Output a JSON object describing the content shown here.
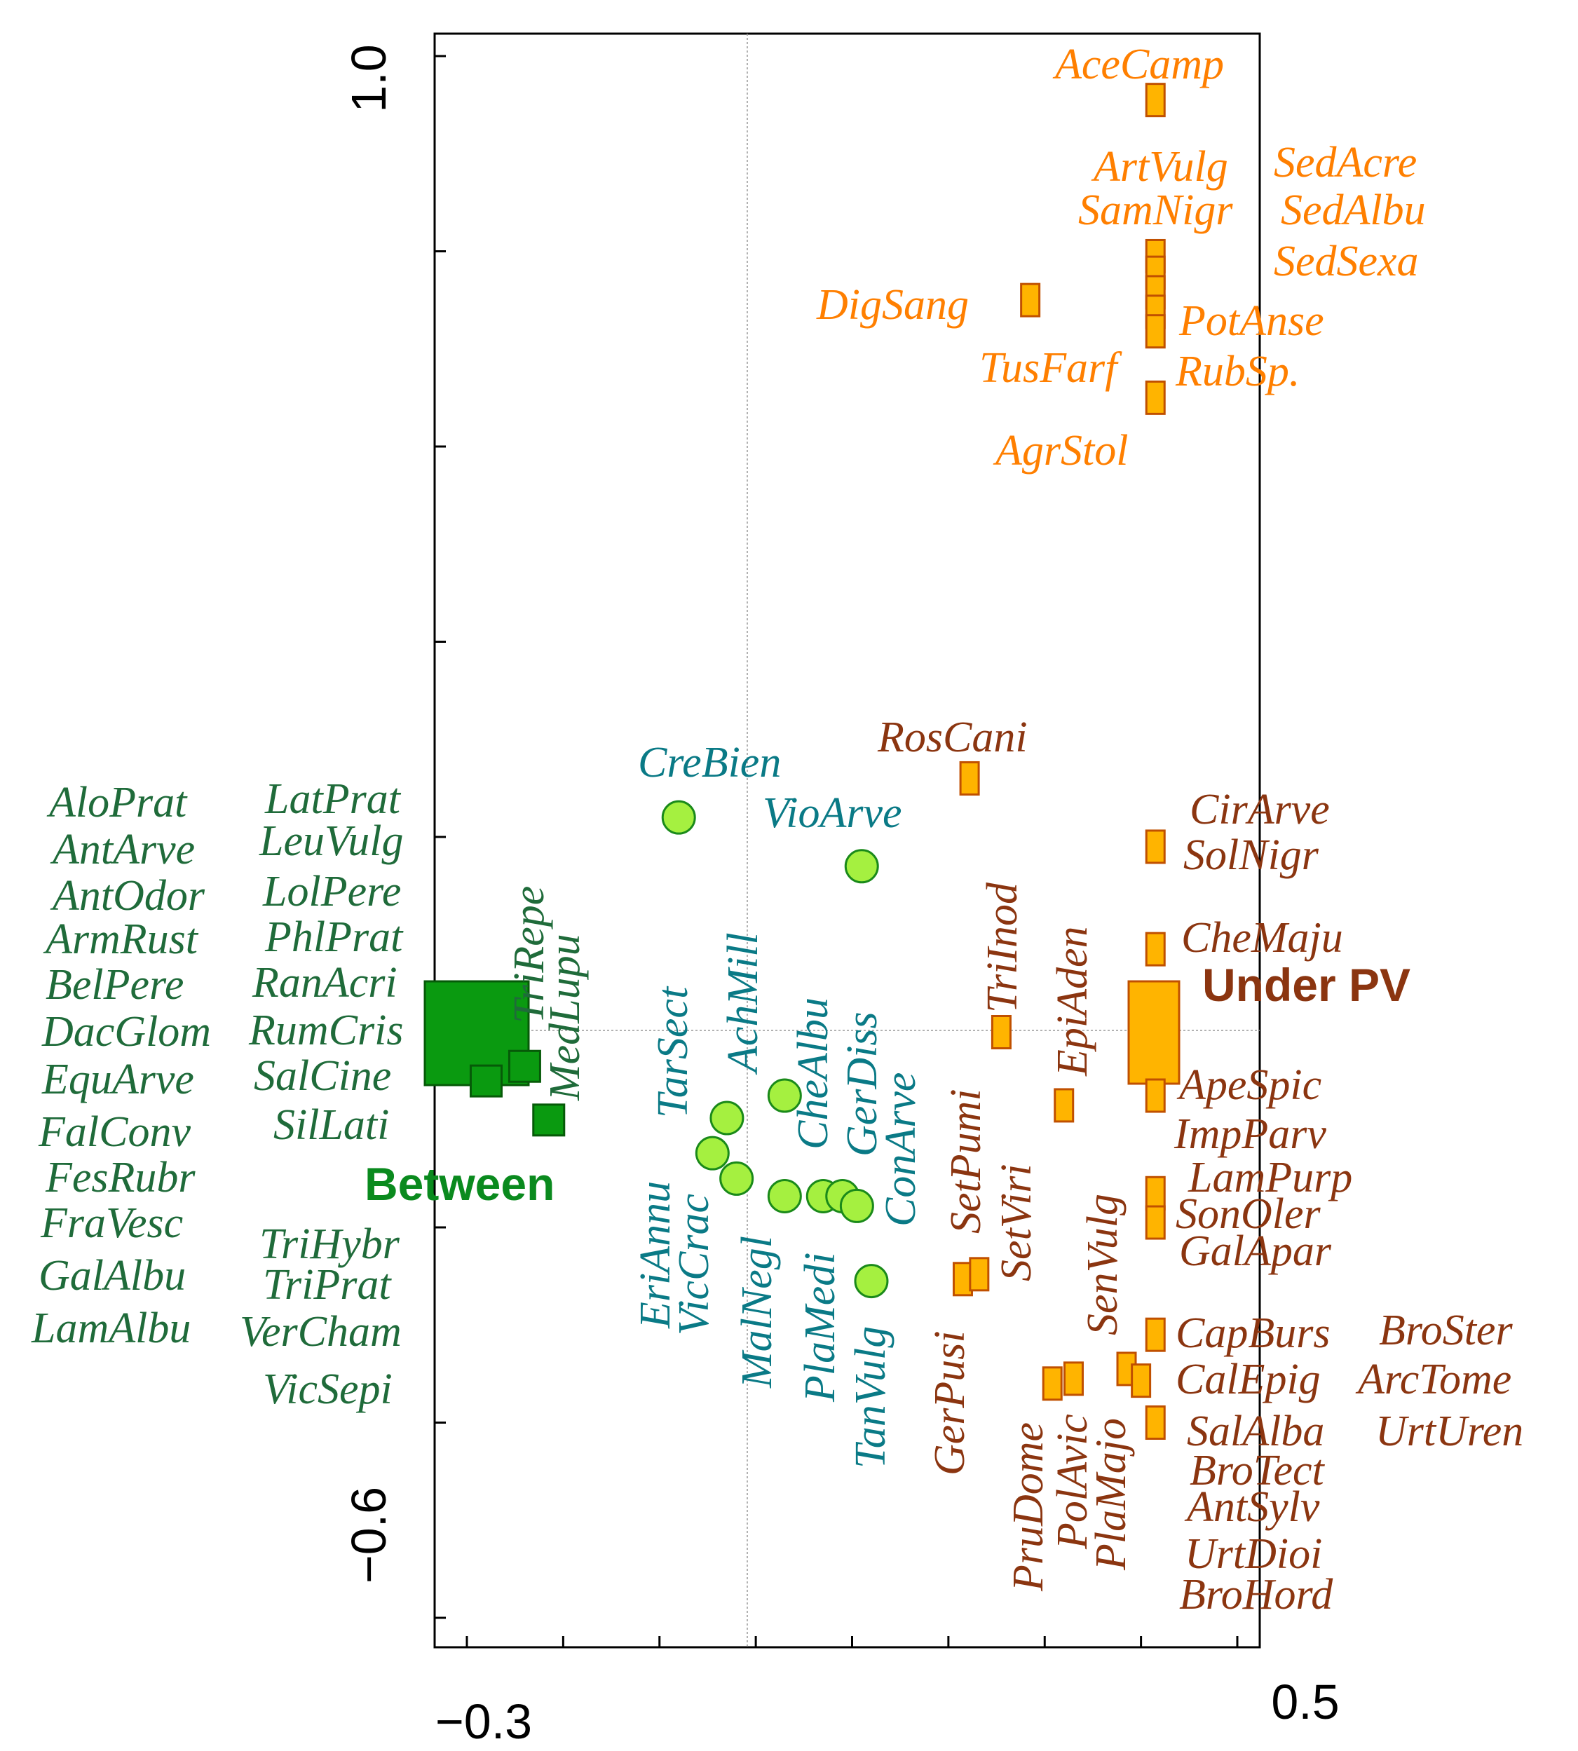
{
  "colors": {
    "dark_green": "#1f6b3a",
    "group_green": "#0a8a1e",
    "teal": "#0a7a86",
    "orange": "#ff7f00",
    "brown": "#8b3510",
    "square_orange": "#ffb400",
    "square_orange_edge": "#c05000",
    "circle_green": "#a5f040",
    "circle_edge": "#1a8a1a",
    "square_green": "#0a9a10",
    "square_green_edge": "#065a08"
  },
  "chart_data": {
    "type": "scatter",
    "title": "",
    "xlabel": "",
    "ylabel": "",
    "xlim": [
      -0.32,
      0.52
    ],
    "ylim": [
      -0.6,
      1.05
    ],
    "x_tick_labels": [
      {
        "value": -0.3,
        "label": "−0.3"
      },
      {
        "value": 0.5,
        "label": "0.5"
      }
    ],
    "y_tick_labels": [
      {
        "value": 1.0,
        "label": "1.0"
      },
      {
        "value": -0.6,
        "label": "−0.6"
      }
    ],
    "x_ticks": [
      -0.3,
      -0.2,
      -0.1,
      0.0,
      0.1,
      0.2,
      0.3,
      0.4,
      0.5
    ],
    "y_ticks": [
      1.0,
      0.8,
      0.6,
      0.4,
      0.2,
      0.0,
      -0.2,
      -0.4,
      -0.6
    ],
    "groups": [
      {
        "name": "Between",
        "x": -0.28,
        "y": 0.0,
        "color": "group_green"
      },
      {
        "name": "Under PV",
        "x": 0.42,
        "y": 0.0,
        "color": "brown"
      }
    ],
    "circles": [
      {
        "x": -0.08,
        "y": 0.22
      },
      {
        "x": 0.11,
        "y": 0.17
      },
      {
        "x": 0.03,
        "y": -0.065
      },
      {
        "x": -0.03,
        "y": -0.088
      },
      {
        "x": -0.045,
        "y": -0.124
      },
      {
        "x": -0.02,
        "y": -0.15
      },
      {
        "x": 0.03,
        "y": -0.168
      },
      {
        "x": 0.07,
        "y": -0.168
      },
      {
        "x": 0.09,
        "y": -0.168
      },
      {
        "x": 0.105,
        "y": -0.178
      },
      {
        "x": 0.12,
        "y": -0.255
      }
    ],
    "orange_points": [
      {
        "x": 0.415,
        "y": 0.955
      },
      {
        "x": 0.285,
        "y": 0.75
      },
      {
        "x": 0.415,
        "y": 0.795
      },
      {
        "x": 0.415,
        "y": 0.778
      },
      {
        "x": 0.415,
        "y": 0.758
      },
      {
        "x": 0.415,
        "y": 0.738
      },
      {
        "x": 0.415,
        "y": 0.718
      },
      {
        "x": 0.415,
        "y": 0.65
      }
    ],
    "brown_points": [
      {
        "x": 0.222,
        "y": 0.26
      },
      {
        "x": 0.415,
        "y": 0.19
      },
      {
        "x": 0.415,
        "y": 0.085
      },
      {
        "x": 0.255,
        "y": 0.0
      },
      {
        "x": 0.32,
        "y": -0.075
      },
      {
        "x": 0.415,
        "y": -0.065
      },
      {
        "x": 0.415,
        "y": -0.165
      },
      {
        "x": 0.415,
        "y": -0.195
      },
      {
        "x": 0.215,
        "y": -0.253
      },
      {
        "x": 0.232,
        "y": -0.248
      },
      {
        "x": 0.33,
        "y": -0.355
      },
      {
        "x": 0.385,
        "y": -0.345
      },
      {
        "x": 0.4,
        "y": -0.357
      },
      {
        "x": 0.308,
        "y": -0.36
      },
      {
        "x": 0.415,
        "y": -0.31
      },
      {
        "x": 0.415,
        "y": -0.4
      }
    ],
    "green_points": [
      {
        "x": -0.24,
        "y": -0.035
      },
      {
        "x": -0.215,
        "y": -0.09
      },
      {
        "x": -0.28,
        "y": -0.05
      }
    ],
    "green_labels": {
      "col1": [
        "AloPrat",
        "AntArve",
        "AntOdor",
        "ArmRust",
        "BelPere",
        "DacGlom",
        "EquArve",
        "FalConv",
        "FesRubr",
        "FraVesc",
        "GalAlbu",
        "LamAlbu"
      ],
      "col2": [
        "LatPrat",
        "LeuVulg",
        "LolPere",
        "PhlPrat",
        "RanAcri",
        "RumCris",
        "SalCine",
        "SilLati",
        "TriHybr",
        "TriPrat",
        "VerCham",
        "VicSepi"
      ],
      "vertical": [
        "TriRepe",
        "MedLupu"
      ]
    },
    "teal_labels": {
      "horizontal": [
        "CreBien",
        "VioArve"
      ],
      "vertical": [
        "TarSect",
        "AchMill",
        "CheAlbu",
        "GerDiss",
        "ConArve",
        "EriAnnu",
        "VicCrac",
        "MalNegl",
        "PlaMedi",
        "TanVulg"
      ]
    },
    "orange_labels": [
      "AceCamp",
      "ArtVulg",
      "SedAcre",
      "SamNigr",
      "SedAlbu",
      "SedSexa",
      "DigSang",
      "PotAnse",
      "TusFarf",
      "RubSp.",
      "AgrStol"
    ],
    "brown_labels": {
      "horizontal": [
        "RosCani",
        "CirArve",
        "SolNigr",
        "CheMaju",
        "ApeSpic",
        "ImpParv",
        "LamPurp",
        "SonOler",
        "GalApar",
        "CapBurs",
        "BroSter",
        "CalEpig",
        "ArcTome",
        "SalAlba",
        "UrtUren",
        "BroTect",
        "AntSylv",
        "UrtDioi",
        "BroHord"
      ],
      "vertical": [
        "TriInod",
        "EpiAden",
        "SetPumi",
        "SetViri",
        "GerPusi",
        "SenVulg",
        "PruDome",
        "PolAvic",
        "PlaMajo"
      ]
    }
  }
}
